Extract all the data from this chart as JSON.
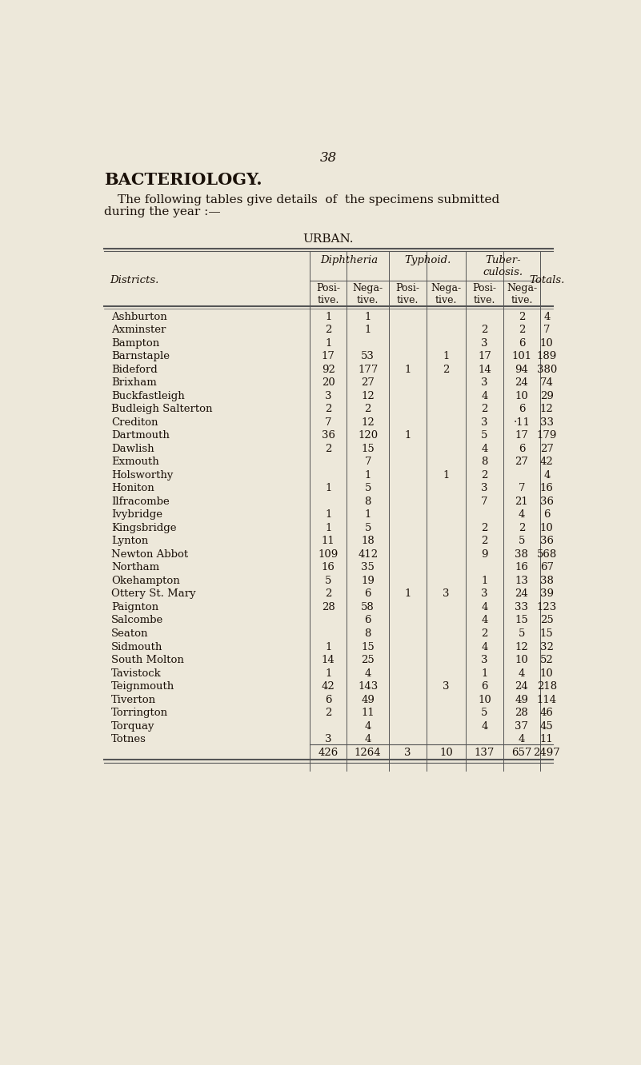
{
  "page_number": "38",
  "title": "BACTERIOLOGY.",
  "subtitle_line1": "The following tables give details  of  the specimens submitted",
  "subtitle_line2": "during the year :—",
  "table_title": "URBAN.",
  "bg_color": "#ede8da",
  "text_color": "#1a1008",
  "line_color": "#555555",
  "totals_row": [
    "426",
    "1264",
    "3",
    "10",
    "137",
    "657",
    "2497"
  ],
  "rows": [
    [
      "Ashburton",
      "..",
      "..",
      "1",
      "1",
      "..",
      "..",
      "..",
      "2",
      "4"
    ],
    [
      "Axminster",
      "..",
      "..",
      "2",
      "1",
      "..",
      "..",
      "2",
      "2",
      "7"
    ],
    [
      "Bampton",
      "..",
      "..",
      "1",
      "..",
      "..",
      "..",
      "3",
      "6",
      "10"
    ],
    [
      "Barnstaple",
      "..",
      "..",
      "17",
      "53",
      "..",
      "1",
      "17",
      "101",
      "189"
    ],
    [
      "Bideford",
      "..",
      "..",
      "92",
      "177",
      "1",
      "2",
      "14",
      "94",
      "380"
    ],
    [
      "Brixham",
      "..",
      "..",
      "20",
      "27",
      "..",
      "..",
      "3",
      "24",
      "74"
    ],
    [
      "Buckfastleigh",
      "..",
      "..",
      "3",
      "12",
      "..",
      "..",
      "4",
      "10",
      "29"
    ],
    [
      "Budleigh Salterton",
      "..",
      "..",
      "2",
      "2",
      "..",
      "..",
      "2",
      "6",
      "12"
    ],
    [
      "Crediton",
      "..",
      "..",
      "7",
      "12",
      "..",
      "..",
      "3",
      "·11",
      "33"
    ],
    [
      "Dartmouth",
      "..",
      "..",
      "36",
      "120",
      "1",
      "..",
      "5",
      "17",
      "179"
    ],
    [
      "Dawlish",
      "..",
      "..",
      "2",
      "15",
      "..",
      "..",
      "4",
      "6",
      "27"
    ],
    [
      "Exmouth",
      "..",
      "..",
      "..",
      "7",
      "..",
      "..",
      "8",
      "27",
      "42"
    ],
    [
      "Holsworthy",
      "..",
      "..",
      "..",
      "1",
      "..",
      "1",
      "2",
      "..",
      "4"
    ],
    [
      "Honiton",
      "..",
      "..",
      "1",
      "5",
      "..",
      "..",
      "3",
      "7",
      "16"
    ],
    [
      "Ilfracombe",
      "..",
      "..",
      "..",
      "8",
      "..",
      "..",
      "7",
      "21",
      "36"
    ],
    [
      "Ivybridge",
      "..",
      "..",
      "1",
      "1",
      "..",
      "..",
      "..",
      "4",
      "6"
    ],
    [
      "Kingsbridge",
      "..",
      "..",
      "1",
      "5",
      "..",
      "..",
      "2",
      "2",
      "10"
    ],
    [
      "Lynton",
      "..",
      "..",
      "11",
      "18",
      "..",
      "..",
      "2",
      "5",
      "36"
    ],
    [
      "Newton Abbot",
      "..",
      "..",
      "109",
      "412",
      "..",
      "..",
      "9",
      "38",
      "568"
    ],
    [
      "Northam",
      "..",
      "..",
      "16",
      "35",
      "..",
      "..",
      "..",
      "16",
      "67"
    ],
    [
      "Okehampton",
      "..",
      "..",
      "5",
      "19",
      "..",
      "..",
      "1",
      "13",
      "38"
    ],
    [
      "Ottery St. Mary",
      "..",
      "..",
      "2",
      "6",
      "1",
      "3",
      "3",
      "24",
      "39"
    ],
    [
      "Paignton",
      "..",
      "..",
      "28",
      "58",
      "..",
      "..",
      "4",
      "33",
      "123"
    ],
    [
      "Salcombe",
      "..",
      "..",
      "..",
      "6",
      "..",
      "..",
      "4",
      "15",
      "25"
    ],
    [
      "Seaton",
      "..",
      "..",
      "..",
      "8",
      "..",
      "..",
      "2",
      "5",
      "15"
    ],
    [
      "Sidmouth",
      "..",
      "..",
      "1",
      "15",
      "..",
      "..",
      "4",
      "12",
      "32"
    ],
    [
      "South Molton",
      "..",
      "..",
      "14",
      "25",
      "..",
      "..",
      "3",
      "10",
      "52"
    ],
    [
      "Tavistock",
      "..",
      "..",
      "1",
      "4",
      "..",
      "..",
      "1",
      "4",
      "10"
    ],
    [
      "Teignmouth",
      "..",
      "..",
      "42",
      "143",
      "..",
      "3",
      "6",
      "24",
      "218"
    ],
    [
      "Tiverton",
      "..",
      "..",
      "6",
      "49",
      "..",
      "..",
      "10",
      "49",
      "114"
    ],
    [
      "Torrington",
      "..",
      "..",
      "2",
      "11",
      "..",
      "..",
      "5",
      "28",
      "46"
    ],
    [
      "Torquay",
      "..",
      "..",
      "..",
      "4",
      "..",
      "..",
      "4",
      "37",
      "45"
    ],
    [
      "Totnes",
      "..",
      "..",
      "3",
      "4",
      "..",
      "..",
      "..",
      "4",
      "11"
    ]
  ]
}
